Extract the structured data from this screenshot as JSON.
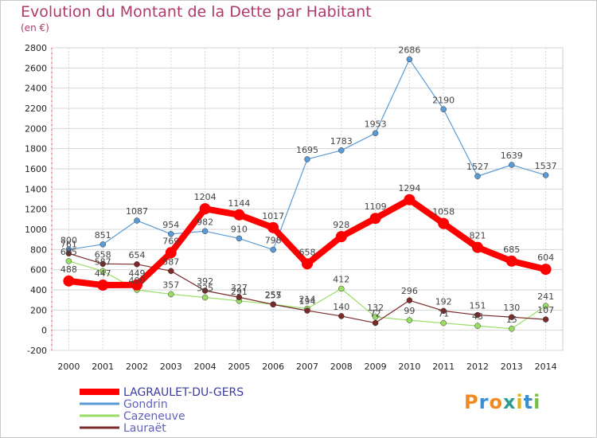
{
  "title": "Evolution du Montant de la Dette par Habitant",
  "subtitle": "(en €)",
  "logo": "Proxiti",
  "chart_data": {
    "type": "line",
    "title": "Evolution du Montant de la Dette par Habitant",
    "subtitle": "(en €)",
    "x": [
      "2000",
      "2001",
      "2002",
      "2003",
      "2004",
      "2005",
      "2006",
      "2007",
      "2008",
      "2009",
      "2010",
      "2011",
      "2012",
      "2013",
      "2014"
    ],
    "ylim": [
      -200,
      2800
    ],
    "yticks": [
      -200,
      0,
      200,
      400,
      600,
      800,
      1000,
      1200,
      1400,
      1600,
      1800,
      2000,
      2200,
      2400,
      2600,
      2800
    ],
    "grid": true,
    "legend_position": "bottom-left",
    "series": [
      {
        "name": "LAGRAULET-DU-GERS",
        "color": "#ff0000",
        "values": [
          488,
          447,
          449,
          769,
          1204,
          1144,
          1017,
          658,
          928,
          1109,
          1294,
          1058,
          821,
          685,
          604
        ]
      },
      {
        "name": "Gondrin",
        "color": "#5b9bd5",
        "values": [
          800,
          851,
          1087,
          954,
          982,
          910,
          798,
          1695,
          1783,
          1953,
          2686,
          2190,
          1527,
          1639,
          1537
        ]
      },
      {
        "name": "Cazeneuve",
        "color": "#99dd66",
        "values": [
          685,
          587,
          400,
          357,
          325,
          291,
          257,
          214,
          412,
          132,
          99,
          71,
          43,
          15,
          241
        ]
      },
      {
        "name": "Lauraët",
        "color": "#7a2a2a",
        "values": [
          761,
          658,
          654,
          587,
          392,
          327,
          255,
          194,
          140,
          72,
          296,
          192,
          151,
          130,
          107
        ]
      }
    ]
  }
}
